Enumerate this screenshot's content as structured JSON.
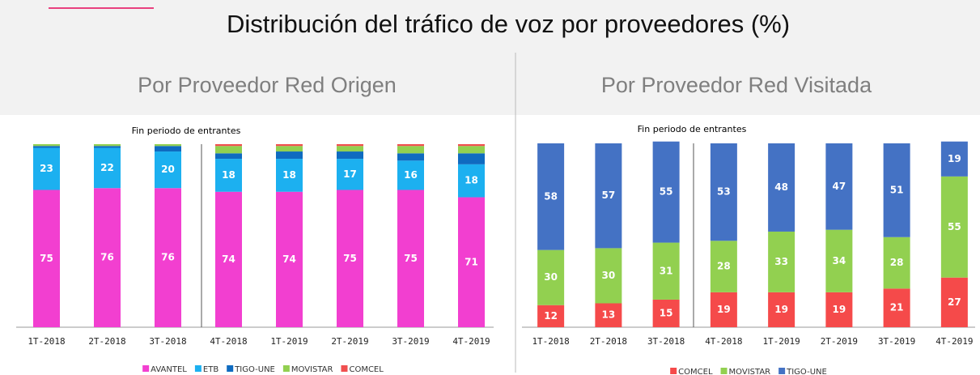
{
  "title": "Distribución del tráfico de voz por proveedores (%)",
  "chart_data": [
    {
      "type": "bar",
      "stacked": true,
      "title": "Por Proveedor Red Origen",
      "subtitle": "Fin periodo de entrantes",
      "categories": [
        "1T-2018",
        "2T-2018",
        "3T-2018",
        "4T-2018",
        "1T-2019",
        "2T-2019",
        "3T-2019",
        "4T-2019"
      ],
      "ylim": [
        0,
        100
      ],
      "series": [
        {
          "name": "AVANTEL",
          "color": "#f23fd0",
          "show_labels": true,
          "values": [
            75,
            76,
            76,
            74,
            74,
            75,
            75,
            71
          ]
        },
        {
          "name": "ETB",
          "color": "#1cb0f0",
          "show_labels": true,
          "values": [
            23,
            22,
            20,
            18,
            18,
            17,
            16,
            18
          ]
        },
        {
          "name": "TIGO-UNE",
          "color": "#0f6bc0",
          "show_labels": false,
          "values": [
            1,
            1,
            3,
            3,
            4,
            4,
            4,
            6
          ]
        },
        {
          "name": "MOVISTAR",
          "color": "#92d050",
          "show_labels": false,
          "values": [
            1,
            1,
            1,
            4,
            3,
            3,
            4,
            4
          ]
        },
        {
          "name": "COMCEL",
          "color": "#f04f4f",
          "show_labels": false,
          "values": [
            0,
            0,
            0,
            1,
            1,
            1,
            1,
            1
          ]
        }
      ]
    },
    {
      "type": "bar",
      "stacked": true,
      "title": "Por Proveedor Red Visitada",
      "subtitle": "Fin periodo de entrantes",
      "categories": [
        "1T-2018",
        "2T-2018",
        "3T-2018",
        "4T-2018",
        "1T-2019",
        "2T-2019",
        "3T-2019",
        "4T-2019"
      ],
      "ylim": [
        0,
        100
      ],
      "series": [
        {
          "name": "COMCEL",
          "color": "#f54a4a",
          "show_labels": true,
          "values": [
            12,
            13,
            15,
            19,
            19,
            19,
            21,
            27
          ]
        },
        {
          "name": "MOVISTAR",
          "color": "#92d050",
          "show_labels": true,
          "values": [
            30,
            30,
            31,
            28,
            33,
            34,
            28,
            55
          ]
        },
        {
          "name": "TIGO-UNE",
          "color": "#4472c4",
          "show_labels": true,
          "values": [
            58,
            57,
            55,
            53,
            48,
            47,
            51,
            19
          ]
        }
      ]
    }
  ]
}
